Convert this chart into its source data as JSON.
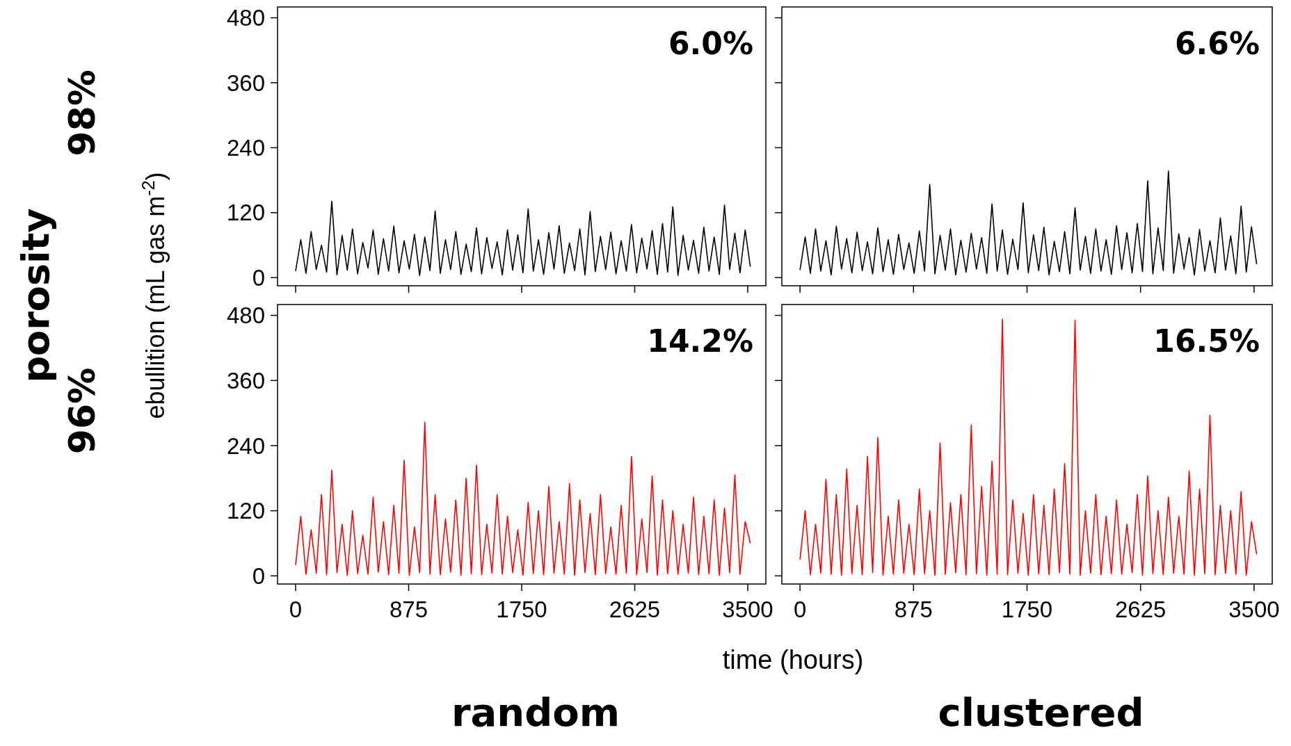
{
  "chart_data": [
    {
      "type": "line",
      "ylabel": "ebullition (mL  gas m$^{-2}$)",
      "subtitle": "98%",
      "annotations": [
        "6.0%",
        "porosity"
      ],
      "tick_labels": "y",
      "xlim": [
        -140,
        3640
      ],
      "ylim": [
        -15,
        500
      ],
      "xticks": [
        0,
        875,
        1750,
        2625,
        3500
      ],
      "yticks": [
        0,
        120,
        240,
        360,
        480
      ],
      "x": [
        0,
        40,
        80,
        120,
        160,
        200,
        240,
        280,
        320,
        360,
        400,
        440,
        480,
        520,
        560,
        600,
        640,
        680,
        720,
        760,
        800,
        840,
        880,
        920,
        960,
        1000,
        1040,
        1080,
        1120,
        1160,
        1200,
        1240,
        1280,
        1320,
        1360,
        1400,
        1440,
        1480,
        1520,
        1560,
        1600,
        1640,
        1680,
        1720,
        1760,
        1800,
        1840,
        1880,
        1920,
        1960,
        2000,
        2040,
        2080,
        2120,
        2160,
        2200,
        2240,
        2280,
        2320,
        2360,
        2400,
        2440,
        2480,
        2520,
        2560,
        2600,
        2640,
        2680,
        2720,
        2760,
        2800,
        2840,
        2880,
        2920,
        2960,
        3000,
        3040,
        3080,
        3120,
        3160,
        3200,
        3240,
        3280,
        3320,
        3360,
        3400,
        3440,
        3480,
        3520
      ],
      "series": [
        {
          "color": "#000000",
          "values": [
            12,
            70,
            8,
            85,
            15,
            60,
            10,
            141,
            5,
            78,
            14,
            90,
            7,
            65,
            18,
            88,
            6,
            72,
            12,
            95,
            9,
            68,
            16,
            80,
            4,
            75,
            13,
            123,
            8,
            70,
            15,
            85,
            6,
            62,
            11,
            92,
            7,
            74,
            17,
            66,
            5,
            88,
            14,
            79,
            9,
            127,
            12,
            70,
            6,
            83,
            16,
            96,
            8,
            64,
            13,
            90,
            5,
            122,
            11,
            76,
            15,
            84,
            7,
            68,
            12,
            98,
            9,
            73,
            16,
            87,
            6,
            100,
            10,
            131,
            4,
            78,
            14,
            69,
            8,
            93,
            12,
            75,
            6,
            134,
            15,
            82,
            9,
            88,
            20
          ]
        }
      ]
    },
    {
      "type": "line",
      "annotations": [
        "6.6%"
      ],
      "tick_labels": false,
      "xlim": [
        -140,
        3640
      ],
      "ylim": [
        -15,
        500
      ],
      "xticks": [
        0,
        875,
        1750,
        2625,
        3500
      ],
      "yticks": [
        0,
        120,
        240,
        360,
        480
      ],
      "x": [
        0,
        40,
        80,
        120,
        160,
        200,
        240,
        280,
        320,
        360,
        400,
        440,
        480,
        520,
        560,
        600,
        640,
        680,
        720,
        760,
        800,
        840,
        880,
        920,
        960,
        1000,
        1040,
        1080,
        1120,
        1160,
        1200,
        1240,
        1280,
        1320,
        1360,
        1400,
        1440,
        1480,
        1520,
        1560,
        1600,
        1640,
        1680,
        1720,
        1760,
        1800,
        1840,
        1880,
        1920,
        1960,
        2000,
        2040,
        2080,
        2120,
        2160,
        2200,
        2240,
        2280,
        2320,
        2360,
        2400,
        2440,
        2480,
        2520,
        2560,
        2600,
        2640,
        2680,
        2720,
        2760,
        2800,
        2840,
        2880,
        2920,
        2960,
        3000,
        3040,
        3080,
        3120,
        3160,
        3200,
        3240,
        3280,
        3320,
        3360,
        3400,
        3440,
        3480,
        3520
      ],
      "series": [
        {
          "color": "#000000",
          "values": [
            14,
            75,
            8,
            90,
            12,
            68,
            5,
            95,
            16,
            72,
            9,
            84,
            13,
            66,
            7,
            92,
            11,
            70,
            6,
            80,
            15,
            64,
            8,
            86,
            12,
            172,
            7,
            78,
            14,
            90,
            5,
            69,
            10,
            82,
            16,
            74,
            8,
            136,
            12,
            88,
            6,
            71,
            15,
            138,
            9,
            79,
            13,
            93,
            5,
            67,
            11,
            85,
            7,
            129,
            14,
            76,
            8,
            90,
            12,
            70,
            6,
            96,
            15,
            83,
            9,
            100,
            11,
            179,
            7,
            92,
            13,
            197,
            8,
            81,
            16,
            74,
            5,
            89,
            12,
            68,
            9,
            110,
            14,
            77,
            7,
            132,
            10,
            94,
            25
          ]
        }
      ]
    },
    {
      "type": "line",
      "title": "random",
      "xlabel": "time (hours)",
      "subtitle": "96%",
      "annotations": [
        "14.2%"
      ],
      "xlim": [
        -140,
        3640
      ],
      "ylim": [
        -15,
        500
      ],
      "xticks": [
        0,
        875,
        1750,
        2625,
        3500
      ],
      "yticks": [
        0,
        120,
        240,
        360,
        480
      ],
      "x": [
        0,
        40,
        80,
        120,
        160,
        200,
        240,
        280,
        320,
        360,
        400,
        440,
        480,
        520,
        560,
        600,
        640,
        680,
        720,
        760,
        800,
        840,
        880,
        920,
        960,
        1000,
        1040,
        1080,
        1120,
        1160,
        1200,
        1240,
        1280,
        1320,
        1360,
        1400,
        1440,
        1480,
        1520,
        1560,
        1600,
        1640,
        1680,
        1720,
        1760,
        1800,
        1840,
        1880,
        1920,
        1960,
        2000,
        2040,
        2080,
        2120,
        2160,
        2200,
        2240,
        2280,
        2320,
        2360,
        2400,
        2440,
        2480,
        2520,
        2560,
        2600,
        2640,
        2680,
        2720,
        2760,
        2800,
        2840,
        2880,
        2920,
        2960,
        3000,
        3040,
        3080,
        3120,
        3160,
        3200,
        3240,
        3280,
        3320,
        3360,
        3400,
        3440,
        3480,
        3520
      ],
      "series": [
        {
          "color": "#ff0000",
          "values": [
            20,
            110,
            3,
            85,
            5,
            150,
            2,
            195,
            6,
            95,
            1,
            120,
            4,
            75,
            3,
            145,
            7,
            100,
            2,
            130,
            5,
            213,
            1,
            90,
            6,
            283,
            3,
            150,
            2,
            105,
            7,
            140,
            1,
            180,
            4,
            204,
            2,
            95,
            5,
            150,
            3,
            110,
            6,
            85,
            1,
            135,
            4,
            120,
            2,
            165,
            5,
            100,
            3,
            170,
            1,
            140,
            6,
            115,
            2,
            150,
            4,
            90,
            3,
            130,
            5,
            220,
            2,
            105,
            6,
            184,
            1,
            140,
            4,
            120,
            3,
            95,
            5,
            145,
            2,
            110,
            4,
            140,
            1,
            125,
            6,
            186,
            3,
            100,
            60
          ]
        }
      ]
    },
    {
      "type": "line",
      "title": "clustered",
      "annotations": [
        "16.5%"
      ],
      "tick_labels": "x",
      "xlim": [
        -140,
        3640
      ],
      "ylim": [
        -15,
        500
      ],
      "xticks": [
        0,
        875,
        1750,
        2625,
        3500
      ],
      "yticks": [
        0,
        120,
        240,
        360,
        480
      ],
      "x": [
        0,
        40,
        80,
        120,
        160,
        200,
        240,
        280,
        320,
        360,
        400,
        440,
        480,
        520,
        560,
        600,
        640,
        680,
        720,
        760,
        800,
        840,
        880,
        920,
        960,
        1000,
        1040,
        1080,
        1120,
        1160,
        1200,
        1240,
        1280,
        1320,
        1360,
        1400,
        1440,
        1480,
        1520,
        1560,
        1600,
        1640,
        1680,
        1720,
        1760,
        1800,
        1840,
        1880,
        1920,
        1960,
        2000,
        2040,
        2080,
        2120,
        2160,
        2200,
        2240,
        2280,
        2320,
        2360,
        2400,
        2440,
        2480,
        2520,
        2560,
        2600,
        2640,
        2680,
        2720,
        2760,
        2800,
        2840,
        2880,
        2920,
        2960,
        3000,
        3040,
        3080,
        3120,
        3160,
        3200,
        3240,
        3280,
        3320,
        3360,
        3400,
        3440,
        3480,
        3520
      ],
      "series": [
        {
          "color": "#ff0000",
          "values": [
            30,
            120,
            2,
            95,
            5,
            178,
            3,
            150,
            1,
            197,
            4,
            130,
            2,
            220,
            6,
            255,
            1,
            110,
            3,
            140,
            5,
            95,
            2,
            160,
            4,
            120,
            1,
            245,
            3,
            135,
            6,
            150,
            2,
            278,
            4,
            165,
            1,
            211,
            3,
            473,
            2,
            140,
            5,
            115,
            1,
            150,
            4,
            130,
            2,
            160,
            6,
            207,
            3,
            471,
            1,
            120,
            5,
            150,
            2,
            110,
            4,
            140,
            3,
            95,
            6,
            150,
            1,
            184,
            4,
            120,
            2,
            145,
            5,
            110,
            3,
            193,
            1,
            160,
            4,
            296,
            2,
            130,
            5,
            120,
            3,
            155,
            1,
            100,
            40
          ]
        }
      ]
    }
  ]
}
